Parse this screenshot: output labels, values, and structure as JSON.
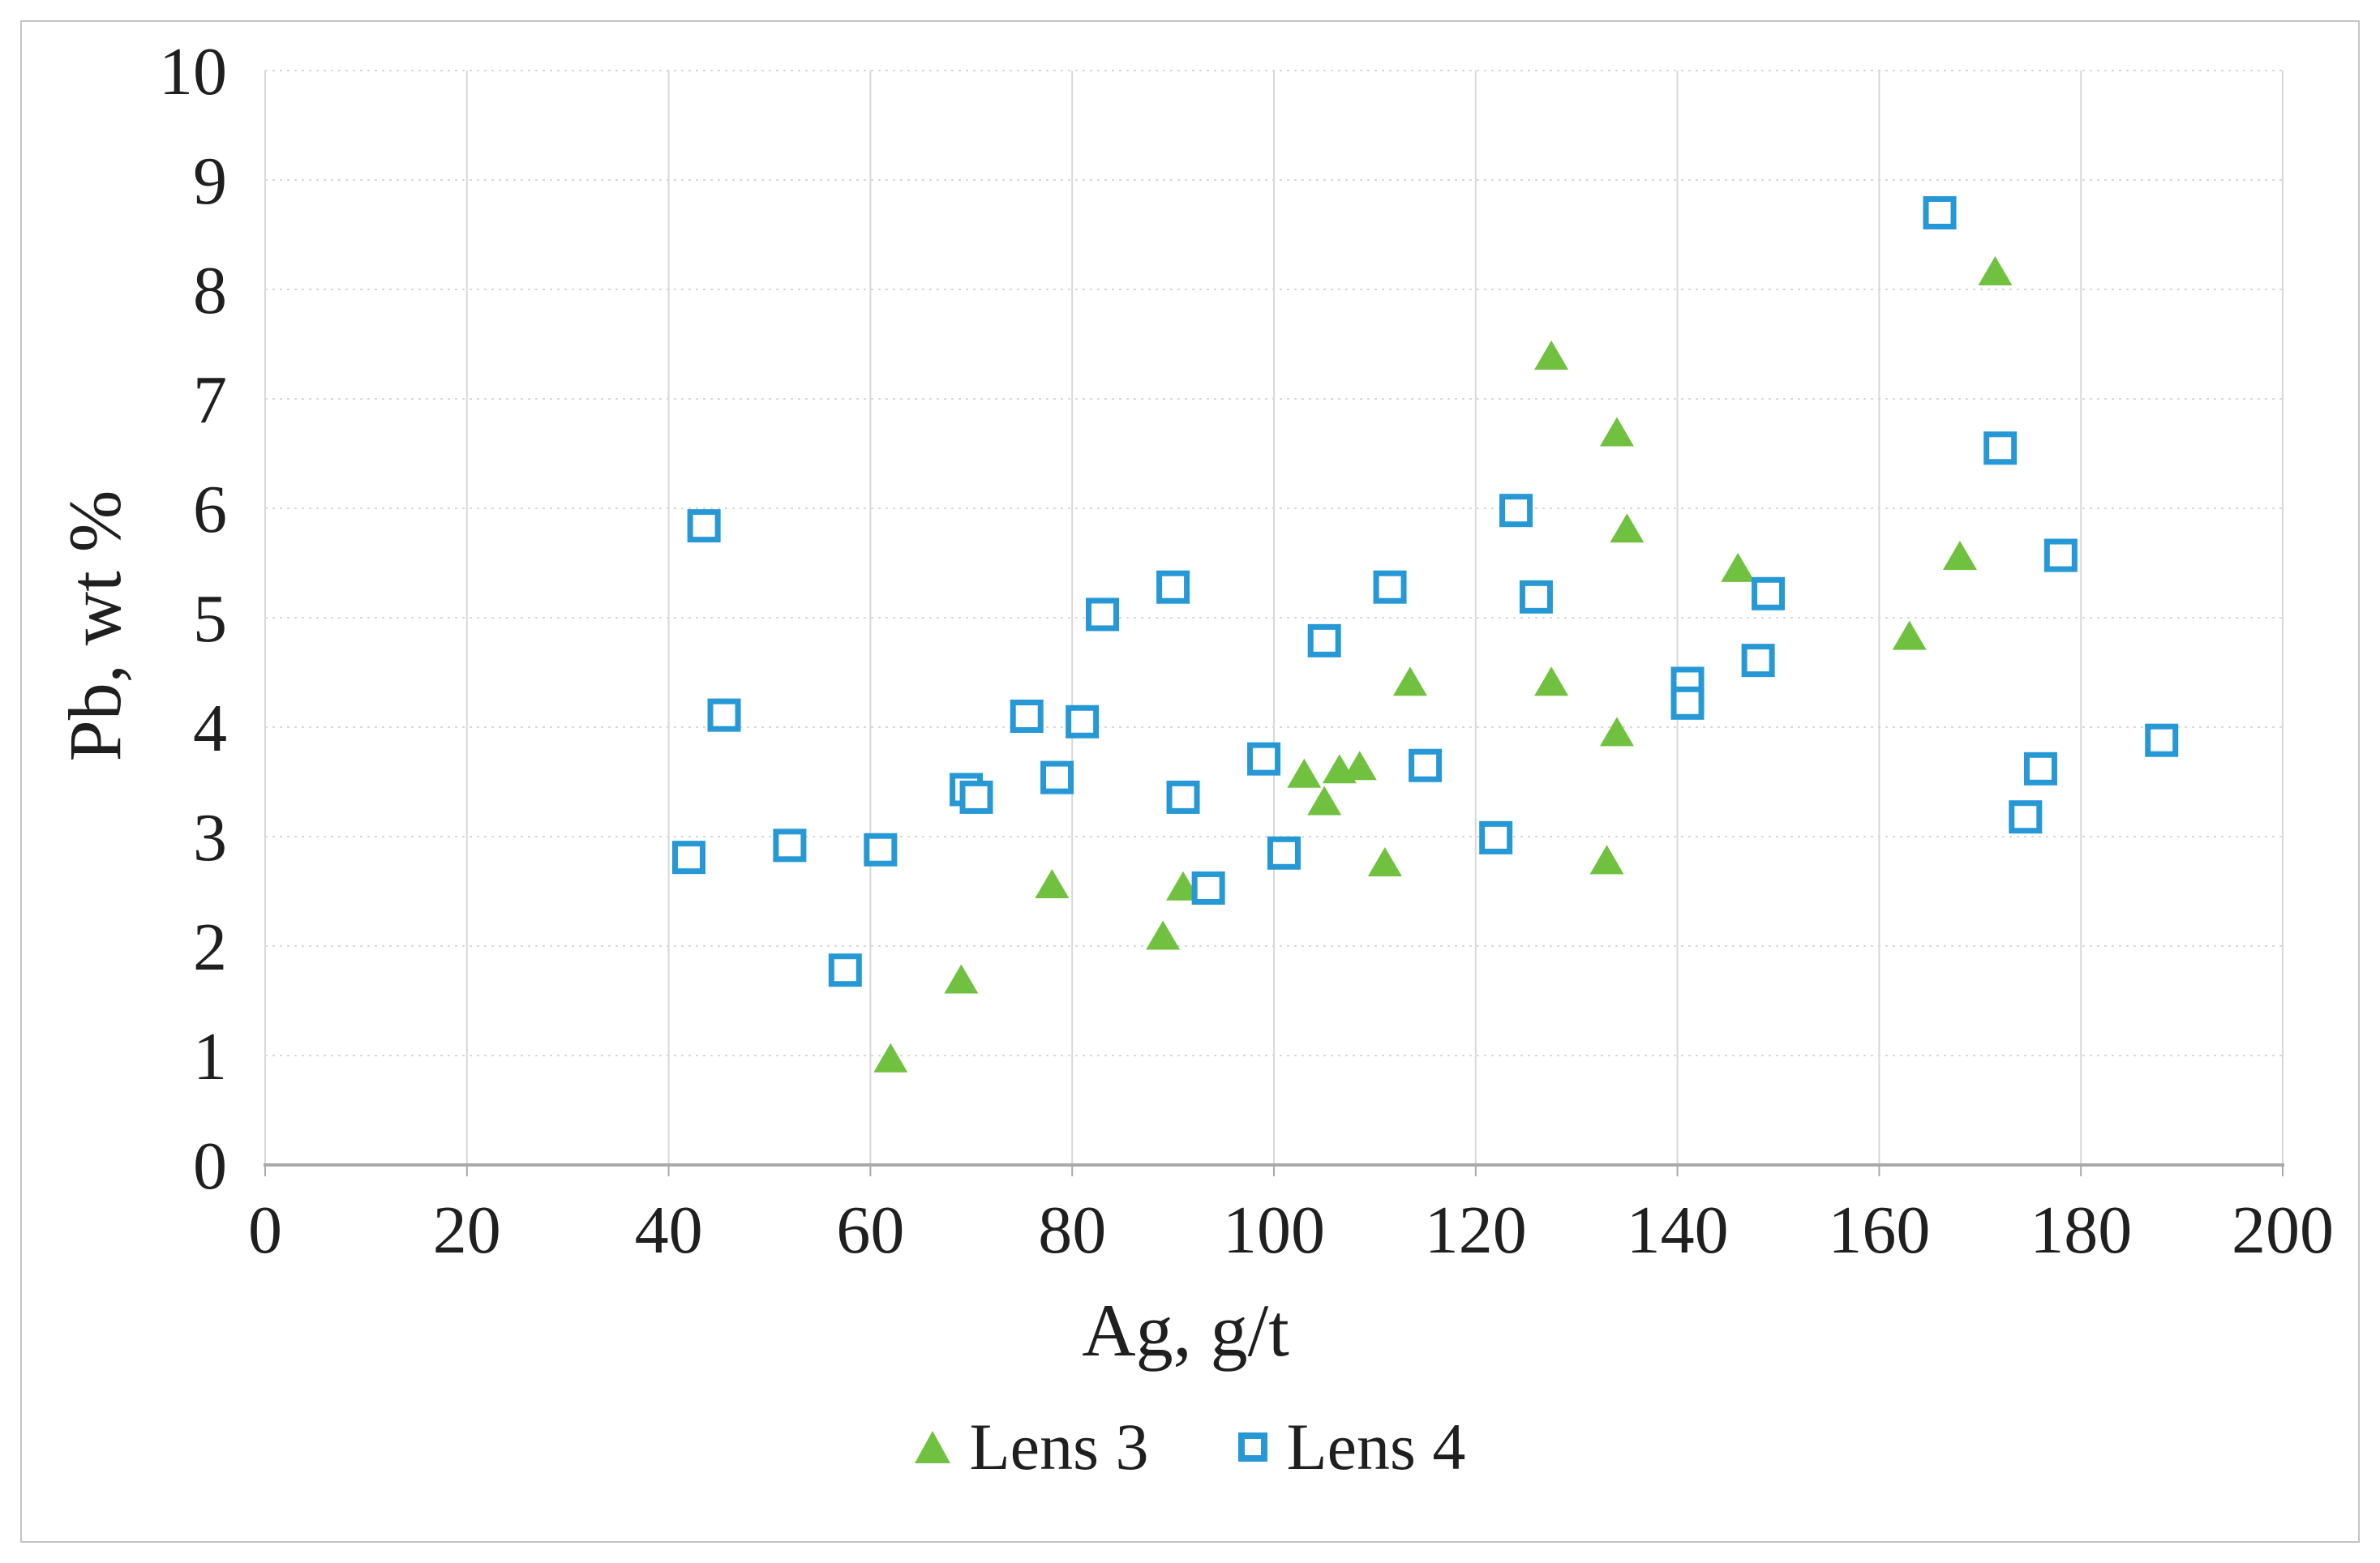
{
  "figure": {
    "background": "#ffffff",
    "border_color": "#c4c4c4",
    "text_color": "#1f1f1f",
    "gridline_color": "#d8d8d8",
    "axis_line_color": "#a9a9a9"
  },
  "chart_data": {
    "type": "scatter",
    "title": "",
    "xlabel": "Ag, g/t",
    "ylabel": "Pb, wt %",
    "xlim": [
      0,
      200
    ],
    "ylim": [
      0,
      10
    ],
    "x_ticks": [
      0,
      20,
      40,
      60,
      80,
      100,
      120,
      140,
      160,
      180,
      200
    ],
    "y_ticks": [
      0,
      1,
      2,
      3,
      4,
      5,
      6,
      7,
      8,
      9,
      10
    ],
    "grid": true,
    "legend_position": "bottom",
    "series": [
      {
        "name": "Lens 3",
        "marker": "filled-triangle",
        "color": "#70C13F",
        "points": [
          [
            62,
            0.98
          ],
          [
            69,
            1.7
          ],
          [
            78,
            2.57
          ],
          [
            89,
            2.1
          ],
          [
            91,
            2.55
          ],
          [
            103,
            3.58
          ],
          [
            105,
            3.33
          ],
          [
            106.5,
            3.62
          ],
          [
            108.5,
            3.65
          ],
          [
            111,
            2.77
          ],
          [
            113.5,
            4.42
          ],
          [
            127.5,
            4.42
          ],
          [
            127.5,
            7.4
          ],
          [
            133,
            2.79
          ],
          [
            134,
            3.96
          ],
          [
            134,
            6.7
          ],
          [
            135,
            5.82
          ],
          [
            146,
            5.46
          ],
          [
            163,
            4.84
          ],
          [
            168,
            5.57
          ],
          [
            171.5,
            8.17
          ]
        ]
      },
      {
        "name": "Lens 4",
        "marker": "open-square",
        "color": "#2598D5",
        "points": [
          [
            42,
            2.81
          ],
          [
            43.5,
            5.84
          ],
          [
            45.5,
            4.11
          ],
          [
            52,
            2.92
          ],
          [
            57.5,
            1.78
          ],
          [
            61,
            2.88
          ],
          [
            69.5,
            3.43
          ],
          [
            70.5,
            3.36
          ],
          [
            75.5,
            4.1
          ],
          [
            78.5,
            3.54
          ],
          [
            81,
            4.05
          ],
          [
            83,
            5.03
          ],
          [
            90,
            5.28
          ],
          [
            91,
            3.36
          ],
          [
            93.5,
            2.53
          ],
          [
            99,
            3.71
          ],
          [
            101,
            2.85
          ],
          [
            105,
            4.79
          ],
          [
            111.5,
            5.28
          ],
          [
            115,
            3.65
          ],
          [
            122,
            2.99
          ],
          [
            124,
            5.98
          ],
          [
            126,
            5.19
          ],
          [
            141,
            4.4
          ],
          [
            141,
            4.22
          ],
          [
            148,
            4.61
          ],
          [
            149,
            5.22
          ],
          [
            166,
            8.7
          ],
          [
            172,
            6.55
          ],
          [
            174.5,
            3.18
          ],
          [
            176,
            3.62
          ],
          [
            178,
            5.57
          ],
          [
            188,
            3.88
          ]
        ]
      }
    ]
  }
}
